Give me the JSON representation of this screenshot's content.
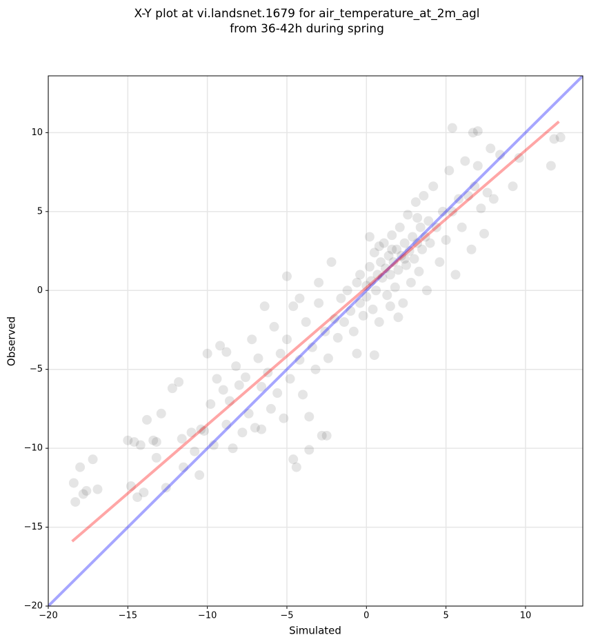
{
  "chart_data": {
    "type": "scatter",
    "title": "X-Y plot at vi.landsnet.1679 for air_temperature_at_2m_agl",
    "subtitle": "from 36-42h during spring",
    "xlabel": "Simulated",
    "ylabel": "Observed",
    "xlim": [
      -20,
      13.6
    ],
    "ylim": [
      -20,
      13.6
    ],
    "xticks": [
      {
        "value": -20,
        "label": "−20"
      },
      {
        "value": -15,
        "label": "−15"
      },
      {
        "value": -10,
        "label": "−10"
      },
      {
        "value": -5,
        "label": "−5"
      },
      0,
      5,
      10
    ],
    "yticks": [
      {
        "value": -20,
        "label": "−20"
      },
      {
        "value": -15,
        "label": "−15"
      },
      {
        "value": -10,
        "label": "−10"
      },
      {
        "value": -5,
        "label": "−5"
      },
      0,
      5,
      10
    ],
    "grid": true,
    "color": "#000000",
    "alpha": 0.1,
    "x": [
      -18.4,
      -18.3,
      -18.0,
      -17.8,
      -17.6,
      -17.2,
      -16.9,
      -15.0,
      -14.8,
      -14.6,
      -14.4,
      -14.2,
      -14.0,
      -13.8,
      -13.4,
      -13.2,
      -12.9,
      -12.6,
      -12.2,
      -11.8,
      -11.6,
      -11.5,
      -11.0,
      -10.8,
      -10.5,
      -10.2,
      -10.0,
      -9.8,
      -9.6,
      -9.4,
      -9.2,
      -9.0,
      -8.8,
      -8.6,
      -8.4,
      -8.2,
      -8.0,
      -7.8,
      -7.6,
      -7.4,
      -7.2,
      -7.0,
      -6.8,
      -6.6,
      -6.4,
      -6.2,
      -6.0,
      -5.8,
      -5.6,
      -5.4,
      -5.2,
      -5.0,
      -4.8,
      -4.6,
      -4.4,
      -4.2,
      -4.0,
      -3.8,
      -3.6,
      -3.4,
      -3.2,
      -3.0,
      -2.8,
      -2.6,
      -2.4,
      -2.2,
      -2.0,
      -1.8,
      -1.6,
      -1.4,
      -1.2,
      -1.0,
      -0.8,
      -0.6,
      -0.4,
      -0.2,
      0.0,
      0.0,
      0.2,
      0.3,
      0.4,
      0.5,
      0.6,
      0.7,
      0.8,
      0.9,
      1.0,
      1.1,
      1.2,
      1.3,
      1.4,
      1.5,
      1.6,
      1.7,
      1.8,
      1.9,
      2.0,
      2.1,
      2.2,
      2.3,
      2.4,
      2.5,
      2.6,
      2.7,
      2.8,
      2.9,
      3.0,
      3.1,
      3.2,
      3.3,
      3.4,
      3.5,
      3.6,
      3.7,
      3.8,
      3.9,
      4.0,
      4.2,
      4.4,
      4.6,
      4.8,
      5.0,
      5.2,
      5.4,
      5.6,
      5.8,
      6.0,
      6.2,
      6.4,
      6.6,
      6.8,
      7.0,
      7.2,
      7.4,
      7.6,
      7.8,
      8.0,
      8.4,
      9.2,
      9.6,
      11.6,
      11.8,
      12.2,
      5.4,
      6.7,
      7.0,
      0.5,
      -0.6,
      2.0,
      1.5,
      0.8,
      1.6,
      2.4,
      3.2,
      -3.6,
      -2.5,
      -4.6,
      -5.0,
      -4.2,
      -3.0,
      0.2,
      -0.4,
      -8.8,
      -13.2,
      -10.4,
      -6.6
    ],
    "y": [
      -12.2,
      -13.4,
      -11.2,
      -12.9,
      -12.7,
      -10.7,
      -12.6,
      -9.5,
      -12.4,
      -9.6,
      -13.1,
      -9.8,
      -12.8,
      -8.2,
      -9.5,
      -10.6,
      -7.8,
      -12.5,
      -6.2,
      -5.8,
      -9.4,
      -11.2,
      -9.0,
      -10.2,
      -11.7,
      -8.9,
      -4.0,
      -7.2,
      -9.8,
      -5.6,
      -3.5,
      -6.3,
      -8.5,
      -7.0,
      -10.0,
      -4.8,
      -6.0,
      -9.0,
      -5.5,
      -7.8,
      -3.1,
      -8.7,
      -4.3,
      -6.1,
      -1.0,
      -5.2,
      -7.5,
      -2.3,
      -6.5,
      -4.0,
      -8.1,
      -3.1,
      -5.6,
      -1.0,
      -11.2,
      -4.4,
      -6.6,
      -2.0,
      -8.0,
      -3.6,
      -5.0,
      -0.8,
      -9.2,
      -2.6,
      -4.3,
      1.8,
      -1.8,
      -3.0,
      -0.5,
      -2.0,
      0.0,
      -1.3,
      -2.6,
      0.5,
      -0.8,
      -1.6,
      0.3,
      -0.4,
      1.5,
      0.6,
      -1.2,
      2.4,
      0.0,
      1.0,
      -2.0,
      1.8,
      0.8,
      3.0,
      1.4,
      -0.3,
      2.2,
      1.0,
      3.5,
      1.8,
      0.2,
      2.6,
      1.3,
      4.0,
      2.2,
      -0.8,
      3.0,
      1.6,
      4.8,
      2.5,
      0.5,
      3.4,
      2.0,
      5.6,
      3.0,
      1.2,
      4.0,
      2.6,
      6.0,
      3.4,
      0.0,
      4.4,
      3.0,
      6.6,
      4.0,
      1.8,
      5.0,
      3.2,
      7.6,
      5.0,
      1.0,
      5.8,
      4.0,
      8.2,
      6.0,
      2.6,
      6.6,
      7.9,
      5.2,
      3.6,
      6.2,
      9.0,
      5.8,
      8.6,
      6.6,
      8.4,
      7.9,
      9.6,
      9.7,
      10.3,
      10.0,
      10.1,
      -4.1,
      -4.0,
      -1.7,
      -1.0,
      2.8,
      2.6,
      2.0,
      4.6,
      -10.1,
      -9.2,
      -10.7,
      0.9,
      -0.5,
      0.5,
      3.4,
      1.0,
      -3.9,
      -9.6,
      -8.8,
      -8.8
    ],
    "lines": [
      {
        "x": [
          -20,
          13.6
        ],
        "y": [
          -20,
          13.6
        ],
        "color": "#0000ff"
      },
      {
        "x": [
          -18.5,
          12.1
        ],
        "y": [
          -15.9,
          10.7
        ],
        "color": "#ff0000"
      }
    ]
  }
}
